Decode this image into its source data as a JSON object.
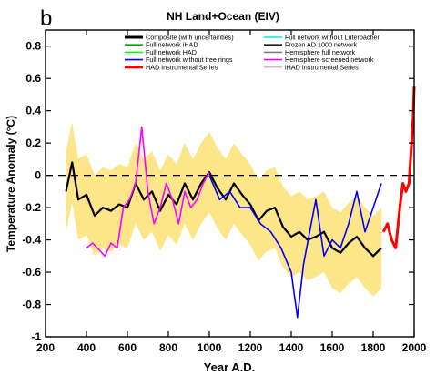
{
  "panel_letter": "b",
  "chart_data": {
    "type": "line",
    "title": "NH Land+Ocean (EIV)",
    "xlabel": "Year A.D.",
    "ylabel": "Temperature Anomaly (°C)",
    "xlim": [
      200,
      2000
    ],
    "ylim": [
      -1,
      0.9
    ],
    "xticks": [
      "200",
      "400",
      "600",
      "800",
      "1000",
      "1200",
      "1400",
      "1600",
      "1800",
      "2000"
    ],
    "yticks": [
      "-1",
      "-0.8",
      "-0.6",
      "-0.4",
      "-0.2",
      "0",
      "0.2",
      "0.4",
      "0.6",
      "0.8"
    ],
    "zero_line": "dashed",
    "legend": [
      {
        "name": "Composite (with uncertainties)",
        "color": "#000000"
      },
      {
        "name": "Full network iHAD",
        "color": "#00aa00"
      },
      {
        "name": "Full network HAD",
        "color": "#00ff00"
      },
      {
        "name": "Full network without tree rings",
        "color": "#0000ff"
      },
      {
        "name": "HAD Instrumental Series",
        "color": "#ff0000"
      },
      {
        "name": "Full network without Luterbacher",
        "color": "#00e5ee"
      },
      {
        "name": "Frozen AD 1000 network",
        "color": "#1a1a1a"
      },
      {
        "name": "Hemisphere full network",
        "color": "#808080"
      },
      {
        "name": "Hemisphere screened network",
        "color": "#ff00ff"
      },
      {
        "name": "iHAD Instrumental Series",
        "color": "#c8c8c8"
      }
    ],
    "uncertainty_color": "#fde58a",
    "series": [
      {
        "name": "Composite (with uncertainties)",
        "color": "#000000",
        "x": [
          300,
          330,
          360,
          400,
          440,
          480,
          520,
          560,
          600,
          640,
          680,
          720,
          760,
          800,
          840,
          880,
          920,
          960,
          1000,
          1040,
          1080,
          1120,
          1160,
          1200,
          1240,
          1280,
          1320,
          1360,
          1400,
          1440,
          1480,
          1520,
          1560,
          1600,
          1640,
          1680,
          1720,
          1760,
          1800,
          1840
        ],
        "y": [
          -0.1,
          0.08,
          -0.15,
          -0.12,
          -0.25,
          -0.2,
          -0.22,
          -0.18,
          -0.2,
          -0.05,
          -0.15,
          -0.1,
          -0.22,
          -0.12,
          -0.18,
          -0.05,
          -0.15,
          -0.05,
          0.02,
          -0.08,
          -0.15,
          -0.05,
          -0.12,
          -0.18,
          -0.28,
          -0.22,
          -0.2,
          -0.32,
          -0.38,
          -0.35,
          -0.4,
          -0.38,
          -0.35,
          -0.45,
          -0.48,
          -0.42,
          -0.38,
          -0.45,
          -0.5,
          -0.45
        ]
      },
      {
        "name": "Hemisphere screened network",
        "color": "#ff00ff",
        "x": [
          400,
          430,
          460,
          490,
          520,
          550,
          580,
          610,
          640,
          670,
          700,
          730,
          760,
          790,
          820,
          850,
          880,
          910,
          940,
          970,
          1000
        ],
        "y": [
          -0.45,
          -0.42,
          -0.46,
          -0.5,
          -0.42,
          -0.45,
          -0.2,
          -0.15,
          -0.05,
          0.3,
          -0.1,
          -0.3,
          -0.2,
          -0.05,
          -0.15,
          -0.3,
          -0.1,
          -0.2,
          -0.15,
          -0.05,
          0.02
        ]
      },
      {
        "name": "Full network without tree rings",
        "color": "#0000ff",
        "x": [
          1000,
          1050,
          1100,
          1150,
          1200,
          1250,
          1300,
          1350,
          1400,
          1430,
          1460,
          1490,
          1520,
          1560,
          1600,
          1640,
          1680,
          1720,
          1760,
          1800,
          1840
        ],
        "y": [
          0.0,
          -0.15,
          -0.1,
          -0.2,
          -0.2,
          -0.3,
          -0.35,
          -0.45,
          -0.6,
          -0.88,
          -0.55,
          -0.35,
          -0.15,
          -0.5,
          -0.4,
          -0.45,
          -0.3,
          -0.1,
          -0.35,
          -0.2,
          -0.05
        ]
      },
      {
        "name": "HAD Instrumental Series",
        "color": "#ff0000",
        "x": [
          1850,
          1870,
          1890,
          1910,
          1930,
          1945,
          1960,
          1975,
          1985,
          1995,
          2000
        ],
        "y": [
          -0.35,
          -0.3,
          -0.4,
          -0.45,
          -0.2,
          -0.05,
          -0.1,
          -0.05,
          0.15,
          0.35,
          0.55
        ]
      }
    ]
  }
}
